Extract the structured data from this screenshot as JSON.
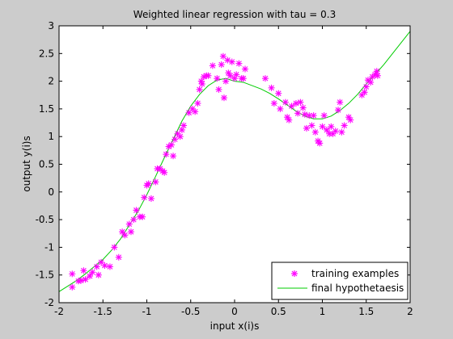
{
  "chart_data": {
    "type": "scatter",
    "title": "Weighted linear regression with tau = 0.3",
    "xlabel": "input x(i)s",
    "ylabel": "output y(i)s",
    "xlim": [
      -2,
      2
    ],
    "ylim": [
      -2,
      3
    ],
    "xticks": [
      -2,
      -1.5,
      -1,
      -0.5,
      0,
      0.5,
      1,
      1.5,
      2
    ],
    "xtick_labels": [
      "-2",
      "-1.5",
      "-1",
      "-0.5",
      "0",
      "0.5",
      "1",
      "1.5",
      "2"
    ],
    "yticks": [
      -2,
      -1.5,
      -1,
      -0.5,
      0,
      0.5,
      1,
      1.5,
      2,
      2.5,
      3
    ],
    "ytick_labels": [
      "-2",
      "-1.5",
      "-1",
      "-0.5",
      "0",
      "0.5",
      "1",
      "1.5",
      "2",
      "2.5",
      "3"
    ],
    "grid": false,
    "legend_position": "bottom-right",
    "colors": {
      "points": "#ff00ff",
      "line": "#00cc00",
      "axes_bg": "#ffffff",
      "figure_bg": "#cccccc"
    },
    "series": [
      {
        "name": "training examples",
        "kind": "scatter",
        "marker": "asterisk",
        "points": [
          [
            -1.85,
            -1.48
          ],
          [
            -1.85,
            -1.72
          ],
          [
            -1.78,
            -1.61
          ],
          [
            -1.75,
            -1.6
          ],
          [
            -1.72,
            -1.42
          ],
          [
            -1.7,
            -1.58
          ],
          [
            -1.65,
            -1.52
          ],
          [
            -1.62,
            -1.45
          ],
          [
            -1.57,
            -1.35
          ],
          [
            -1.55,
            -1.5
          ],
          [
            -1.52,
            -1.27
          ],
          [
            -1.48,
            -1.33
          ],
          [
            -1.42,
            -1.35
          ],
          [
            -1.37,
            -1.0
          ],
          [
            -1.32,
            -1.18
          ],
          [
            -1.28,
            -0.72
          ],
          [
            -1.25,
            -0.78
          ],
          [
            -1.2,
            -0.58
          ],
          [
            -1.18,
            -0.72
          ],
          [
            -1.15,
            -0.5
          ],
          [
            -1.12,
            -0.33
          ],
          [
            -1.08,
            -0.45
          ],
          [
            -1.05,
            -0.45
          ],
          [
            -1.03,
            -0.1
          ],
          [
            -1.0,
            0.12
          ],
          [
            -0.98,
            0.15
          ],
          [
            -0.95,
            -0.12
          ],
          [
            -0.9,
            0.18
          ],
          [
            -0.88,
            0.42
          ],
          [
            -0.85,
            0.42
          ],
          [
            -0.82,
            0.38
          ],
          [
            -0.8,
            0.35
          ],
          [
            -0.78,
            0.68
          ],
          [
            -0.75,
            0.82
          ],
          [
            -0.72,
            0.85
          ],
          [
            -0.7,
            0.65
          ],
          [
            -0.68,
            0.95
          ],
          [
            -0.65,
            1.05
          ],
          [
            -0.62,
            1.0
          ],
          [
            -0.6,
            1.12
          ],
          [
            -0.58,
            1.2
          ],
          [
            -0.52,
            1.43
          ],
          [
            -0.48,
            1.5
          ],
          [
            -0.45,
            1.45
          ],
          [
            -0.42,
            1.6
          ],
          [
            -0.4,
            1.85
          ],
          [
            -0.38,
            2.0
          ],
          [
            -0.37,
            1.95
          ],
          [
            -0.35,
            2.08
          ],
          [
            -0.32,
            2.1
          ],
          [
            -0.3,
            2.1
          ],
          [
            -0.25,
            2.28
          ],
          [
            -0.2,
            2.05
          ],
          [
            -0.18,
            1.85
          ],
          [
            -0.15,
            2.3
          ],
          [
            -0.13,
            2.45
          ],
          [
            -0.12,
            1.7
          ],
          [
            -0.1,
            2.0
          ],
          [
            -0.08,
            2.38
          ],
          [
            -0.07,
            2.15
          ],
          [
            -0.05,
            2.1
          ],
          [
            -0.03,
            2.35
          ],
          [
            0.0,
            2.05
          ],
          [
            0.02,
            2.12
          ],
          [
            0.05,
            2.32
          ],
          [
            0.08,
            2.05
          ],
          [
            0.1,
            2.05
          ],
          [
            0.12,
            2.22
          ],
          [
            0.35,
            2.05
          ],
          [
            0.42,
            1.88
          ],
          [
            0.45,
            1.6
          ],
          [
            0.5,
            1.78
          ],
          [
            0.52,
            1.5
          ],
          [
            0.58,
            1.62
          ],
          [
            0.6,
            1.35
          ],
          [
            0.62,
            1.3
          ],
          [
            0.65,
            1.55
          ],
          [
            0.7,
            1.6
          ],
          [
            0.72,
            1.42
          ],
          [
            0.75,
            1.62
          ],
          [
            0.78,
            1.52
          ],
          [
            0.8,
            1.4
          ],
          [
            0.82,
            1.15
          ],
          [
            0.85,
            1.38
          ],
          [
            0.88,
            1.2
          ],
          [
            0.9,
            1.38
          ],
          [
            0.92,
            1.08
          ],
          [
            0.95,
            0.92
          ],
          [
            0.97,
            0.88
          ],
          [
            1.0,
            1.18
          ],
          [
            1.02,
            1.38
          ],
          [
            1.05,
            1.12
          ],
          [
            1.08,
            1.05
          ],
          [
            1.1,
            1.18
          ],
          [
            1.12,
            1.05
          ],
          [
            1.15,
            1.1
          ],
          [
            1.18,
            1.48
          ],
          [
            1.2,
            1.62
          ],
          [
            1.22,
            1.08
          ],
          [
            1.25,
            1.2
          ],
          [
            1.3,
            1.35
          ],
          [
            1.32,
            1.3
          ],
          [
            1.45,
            1.75
          ],
          [
            1.48,
            1.8
          ],
          [
            1.5,
            1.9
          ],
          [
            1.52,
            2.02
          ],
          [
            1.55,
            1.98
          ],
          [
            1.57,
            2.08
          ],
          [
            1.6,
            2.12
          ],
          [
            1.62,
            2.18
          ],
          [
            1.63,
            2.1
          ]
        ]
      },
      {
        "name": "final hypothetaesis",
        "kind": "line",
        "points": [
          [
            -2.0,
            -1.8
          ],
          [
            -1.9,
            -1.7
          ],
          [
            -1.8,
            -1.6
          ],
          [
            -1.7,
            -1.48
          ],
          [
            -1.6,
            -1.35
          ],
          [
            -1.5,
            -1.22
          ],
          [
            -1.4,
            -1.05
          ],
          [
            -1.3,
            -0.85
          ],
          [
            -1.2,
            -0.6
          ],
          [
            -1.1,
            -0.35
          ],
          [
            -1.0,
            -0.05
          ],
          [
            -0.9,
            0.28
          ],
          [
            -0.8,
            0.62
          ],
          [
            -0.7,
            0.95
          ],
          [
            -0.6,
            1.28
          ],
          [
            -0.5,
            1.55
          ],
          [
            -0.4,
            1.76
          ],
          [
            -0.3,
            1.92
          ],
          [
            -0.2,
            2.02
          ],
          [
            -0.1,
            2.05
          ],
          [
            0.0,
            2.0
          ],
          [
            0.1,
            1.98
          ],
          [
            0.2,
            1.92
          ],
          [
            0.3,
            1.86
          ],
          [
            0.4,
            1.78
          ],
          [
            0.5,
            1.68
          ],
          [
            0.6,
            1.57
          ],
          [
            0.7,
            1.46
          ],
          [
            0.8,
            1.37
          ],
          [
            0.9,
            1.32
          ],
          [
            1.0,
            1.32
          ],
          [
            1.1,
            1.37
          ],
          [
            1.2,
            1.47
          ],
          [
            1.3,
            1.6
          ],
          [
            1.4,
            1.76
          ],
          [
            1.5,
            1.95
          ],
          [
            1.6,
            2.12
          ],
          [
            1.7,
            2.3
          ],
          [
            1.8,
            2.5
          ],
          [
            1.9,
            2.7
          ],
          [
            2.0,
            2.9
          ]
        ]
      }
    ]
  }
}
